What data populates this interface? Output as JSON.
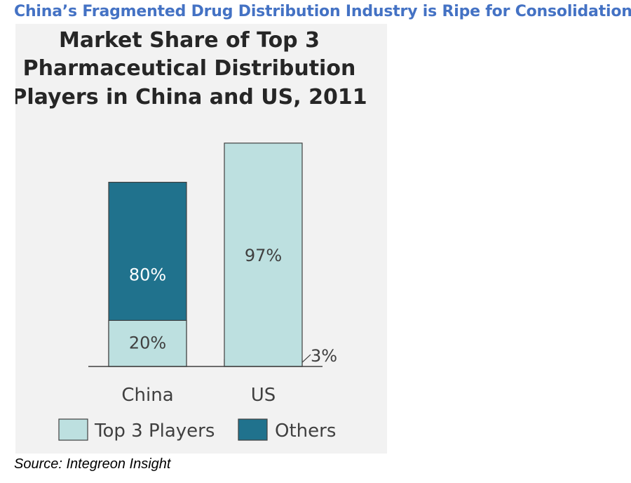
{
  "headline": "China’s Fragmented Drug Distribution Industry is Ripe for Consolidation",
  "source": "Source: Integreon Insight",
  "chart_data": {
    "type": "bar",
    "stacked": true,
    "title_lines": [
      "Market Share of Top 3",
      "Pharmaceutical Distribution",
      "Players in China and US, 2011"
    ],
    "categories": [
      "China",
      "US"
    ],
    "series": [
      {
        "name": "Others",
        "values": [
          80,
          3
        ],
        "labels": [
          "80%",
          "3%"
        ],
        "color": "#20728d"
      },
      {
        "name": "Top 3 Players",
        "values": [
          20,
          97
        ],
        "labels": [
          "20%",
          "97%"
        ],
        "color": "#bde0e0"
      }
    ],
    "legend_order": [
      "Top 3 Players",
      "Others"
    ],
    "legend_position": "bottom",
    "ylim": [
      0,
      100
    ],
    "grid": false,
    "colors": {
      "panel_bg": "#f2f2f2",
      "text": "#404040",
      "title": "#262626",
      "headline": "#4472c4",
      "border": "#404040"
    }
  }
}
